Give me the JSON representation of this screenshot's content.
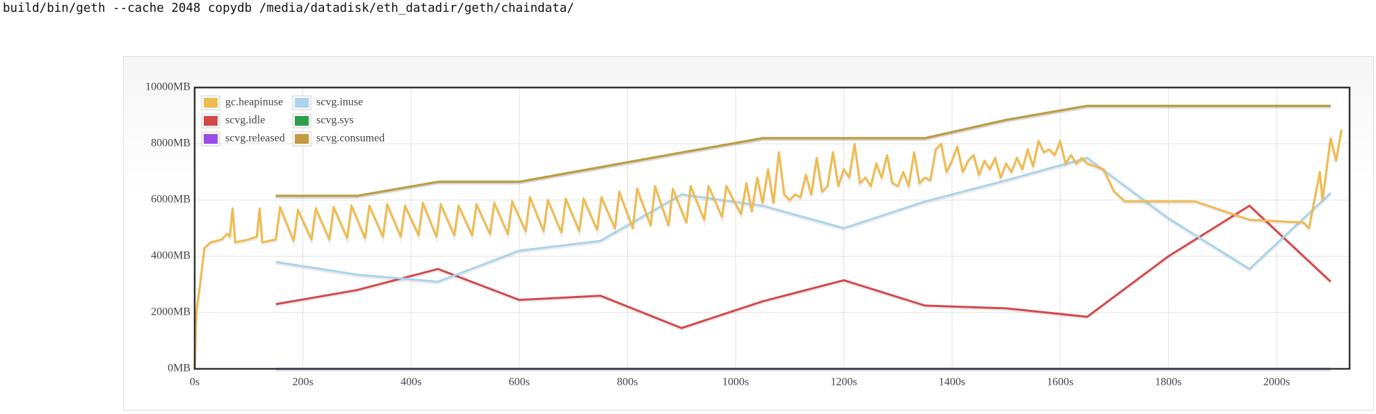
{
  "command": "build/bin/geth --cache 2048 copydb /media/datadisk/eth_datadir/geth/chaindata/",
  "chart_data": {
    "type": "line",
    "grid": true,
    "legend": "top-left",
    "xlim": [
      0,
      2135
    ],
    "ylim": [
      0,
      10000
    ],
    "xticks": [
      {
        "value": 0,
        "label": "0s"
      },
      {
        "value": 200,
        "label": "200s"
      },
      {
        "value": 400,
        "label": "400s"
      },
      {
        "value": 600,
        "label": "600s"
      },
      {
        "value": 800,
        "label": "800s"
      },
      {
        "value": 1000,
        "label": "1000s"
      },
      {
        "value": 1200,
        "label": "1200s"
      },
      {
        "value": 1400,
        "label": "1400s"
      },
      {
        "value": 1600,
        "label": "1600s"
      },
      {
        "value": 1800,
        "label": "1800s"
      },
      {
        "value": 2000,
        "label": "2000s"
      }
    ],
    "yticks": [
      {
        "value": 0,
        "label": "0MB"
      },
      {
        "value": 2000,
        "label": "2000MB"
      },
      {
        "value": 4000,
        "label": "4000MB"
      },
      {
        "value": 6000,
        "label": "6000MB"
      },
      {
        "value": 8000,
        "label": "8000MB"
      },
      {
        "value": 10000,
        "label": "10000MB"
      }
    ],
    "series": [
      {
        "name": "gc.heapinuse",
        "color": "#f0bb4e",
        "x": [
          0,
          3,
          10,
          18,
          30,
          50,
          60,
          65,
          70,
          75,
          100,
          115,
          120,
          125,
          150,
          158,
          183,
          191,
          216,
          224,
          249,
          257,
          282,
          290,
          315,
          323,
          348,
          356,
          381,
          389,
          414,
          422,
          447,
          455,
          480,
          488,
          513,
          521,
          546,
          554,
          579,
          587,
          612,
          620,
          645,
          653,
          678,
          686,
          711,
          719,
          744,
          752,
          777,
          785,
          810,
          818,
          843,
          851,
          876,
          884,
          909,
          917,
          942,
          950,
          975,
          983,
          1010,
          1020,
          1030,
          1040,
          1050,
          1060,
          1070,
          1080,
          1090,
          1100,
          1110,
          1120,
          1130,
          1140,
          1150,
          1160,
          1170,
          1180,
          1190,
          1200,
          1210,
          1220,
          1230,
          1240,
          1250,
          1260,
          1270,
          1280,
          1290,
          1300,
          1310,
          1320,
          1330,
          1340,
          1350,
          1360,
          1370,
          1380,
          1390,
          1400,
          1410,
          1420,
          1430,
          1440,
          1450,
          1460,
          1470,
          1480,
          1490,
          1500,
          1510,
          1520,
          1530,
          1540,
          1550,
          1560,
          1570,
          1580,
          1590,
          1600,
          1610,
          1620,
          1630,
          1640,
          1650,
          1680,
          1700,
          1720,
          1850,
          1950,
          2050,
          2060,
          2080,
          2085,
          2100,
          2110,
          2120
        ],
        "values": [
          0,
          2000,
          3000,
          4300,
          4500,
          4600,
          4800,
          4700,
          5700,
          4500,
          4600,
          4700,
          5700,
          4500,
          4600,
          5750,
          4550,
          5650,
          4600,
          5700,
          4600,
          5750,
          4650,
          5800,
          4650,
          5800,
          4700,
          5850,
          4700,
          5800,
          4750,
          5900,
          4700,
          5850,
          4750,
          5800,
          4750,
          5850,
          4800,
          5900,
          4800,
          5950,
          4900,
          6100,
          4900,
          6000,
          4850,
          6050,
          4900,
          6050,
          4950,
          6100,
          5000,
          6300,
          5000,
          6400,
          5100,
          6500,
          5100,
          6400,
          5200,
          6500,
          5300,
          6500,
          5400,
          6500,
          5500,
          6600,
          5600,
          6800,
          5900,
          7100,
          5900,
          7700,
          6200,
          6000,
          6200,
          6100,
          6900,
          6200,
          7500,
          6300,
          6500,
          7700,
          6500,
          7100,
          6800,
          8000,
          6600,
          6800,
          6500,
          7300,
          6800,
          7600,
          6600,
          6500,
          7000,
          6500,
          7700,
          6600,
          6800,
          6700,
          7800,
          8000,
          7000,
          7400,
          7900,
          7000,
          7400,
          7600,
          6900,
          7400,
          7100,
          7500,
          6800,
          7300,
          7000,
          7500,
          7100,
          7800,
          7200,
          8100,
          7700,
          7800,
          7600,
          8100,
          7300,
          7600,
          7300,
          7500,
          7300,
          7100,
          6300,
          5950,
          5950,
          5300,
          5200,
          5000,
          7000,
          6000,
          8200,
          7400,
          8500
        ]
      },
      {
        "name": "scvg.inuse",
        "color": "#a9d4ec",
        "x": [
          150,
          300,
          450,
          600,
          750,
          900,
          1050,
          1200,
          1350,
          1500,
          1650,
          1800,
          1950,
          2100
        ],
        "values": [
          3800,
          3350,
          3100,
          4200,
          4550,
          6200,
          5800,
          5000,
          5950,
          6700,
          7500,
          5350,
          3550,
          6250
        ]
      },
      {
        "name": "scvg.idle",
        "color": "#d5484a",
        "x": [
          150,
          300,
          450,
          600,
          750,
          900,
          1050,
          1200,
          1350,
          1500,
          1650,
          1800,
          1950,
          2100
        ],
        "values": [
          2300,
          2800,
          3550,
          2450,
          2600,
          1450,
          2400,
          3150,
          2250,
          2150,
          1850,
          4000,
          5800,
          3100
        ]
      },
      {
        "name": "scvg.sys",
        "color": "#2f9e4c",
        "x": [
          150,
          300,
          450,
          600,
          750,
          900,
          1050,
          1200,
          1350,
          1500,
          1650,
          1800,
          1950,
          2100
        ],
        "values": [
          6150,
          6150,
          6650,
          6650,
          7170,
          7690,
          8200,
          8200,
          8200,
          8850,
          9350,
          9350,
          9350,
          9350
        ]
      },
      {
        "name": "scvg.released",
        "color": "#9a4ce6",
        "x": [
          150,
          300,
          450,
          600,
          750,
          900,
          1050,
          1200,
          1350,
          1500,
          1650,
          1800,
          1950,
          2100
        ],
        "values": [
          0,
          0,
          0,
          0,
          0,
          0,
          0,
          0,
          0,
          0,
          0,
          0,
          0,
          0
        ]
      },
      {
        "name": "scvg.consumed",
        "color": "#c39a3e",
        "x": [
          150,
          300,
          450,
          600,
          750,
          900,
          1050,
          1200,
          1350,
          1500,
          1650,
          1800,
          1950,
          2100
        ],
        "values": [
          6150,
          6150,
          6650,
          6650,
          7170,
          7690,
          8200,
          8200,
          8200,
          8850,
          9350,
          9350,
          9350,
          9350
        ]
      }
    ]
  }
}
